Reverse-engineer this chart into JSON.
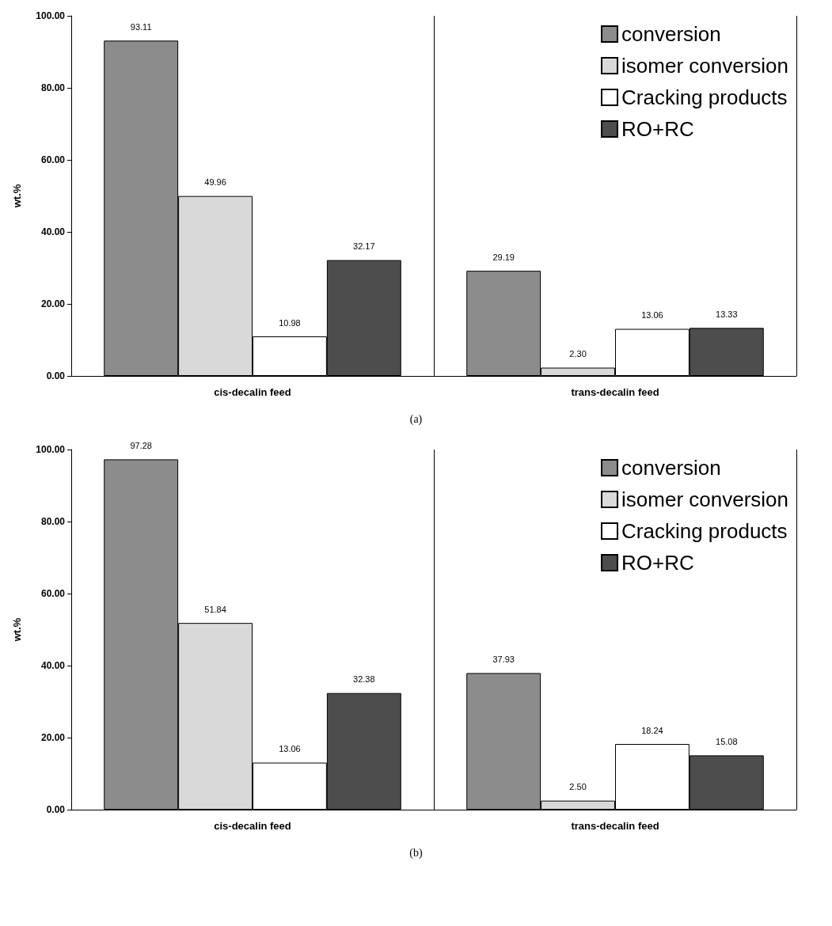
{
  "chart_data": [
    {
      "type": "bar",
      "ylabel": "wt.%",
      "categories": [
        "cis-decalin feed",
        "trans-decalin feed"
      ],
      "ylim": [
        0,
        100
      ],
      "yticks": [
        {
          "value": 0,
          "label": "0.00"
        },
        {
          "value": 20,
          "label": "20.00"
        },
        {
          "value": 40,
          "label": "40.00"
        },
        {
          "value": 60,
          "label": "60.00"
        },
        {
          "value": 80,
          "label": "80.00"
        },
        {
          "value": 100,
          "label": "100.00"
        }
      ],
      "grid": false,
      "legend": "top right",
      "annotations": [
        "(a)"
      ],
      "series": [
        {
          "name": "conversion",
          "color": "#8c8c8c",
          "values": [
            93.11,
            29.19
          ],
          "value_labels": [
            "93.11",
            "29.19"
          ]
        },
        {
          "name": "isomer conversion",
          "color": "#d9d9d9",
          "values": [
            49.96,
            2.3
          ],
          "value_labels": [
            "49.96",
            "2.30"
          ]
        },
        {
          "name": "Cracking products",
          "color": "#ffffff",
          "values": [
            10.98,
            13.06
          ],
          "value_labels": [
            "10.98",
            "13.06"
          ]
        },
        {
          "name": "RO+RC",
          "color": "#4d4d4d",
          "values": [
            32.17,
            13.33
          ],
          "value_labels": [
            "32.17",
            "13.33"
          ]
        }
      ]
    },
    {
      "type": "bar",
      "ylabel": "wt.%",
      "categories": [
        "cis-decalin feed",
        "trans-decalin feed"
      ],
      "ylim": [
        0,
        100
      ],
      "yticks": [
        {
          "value": 0,
          "label": "0.00"
        },
        {
          "value": 20,
          "label": "20.00"
        },
        {
          "value": 40,
          "label": "40.00"
        },
        {
          "value": 60,
          "label": "60.00"
        },
        {
          "value": 80,
          "label": "80.00"
        },
        {
          "value": 100,
          "label": "100.00"
        }
      ],
      "grid": false,
      "legend": "top right",
      "annotations": [
        "(b)"
      ],
      "series": [
        {
          "name": "conversion",
          "color": "#8c8c8c",
          "values": [
            97.28,
            37.93
          ],
          "value_labels": [
            "97.28",
            "37.93"
          ]
        },
        {
          "name": "isomer conversion",
          "color": "#d9d9d9",
          "values": [
            51.84,
            2.5
          ],
          "value_labels": [
            "51.84",
            "2.50"
          ]
        },
        {
          "name": "Cracking products",
          "color": "#ffffff",
          "values": [
            13.06,
            18.24
          ],
          "value_labels": [
            "13.06",
            "18.24"
          ]
        },
        {
          "name": "RO+RC",
          "color": "#4d4d4d",
          "values": [
            32.38,
            15.08
          ],
          "value_labels": [
            "32.38",
            "15.08"
          ]
        }
      ]
    }
  ]
}
